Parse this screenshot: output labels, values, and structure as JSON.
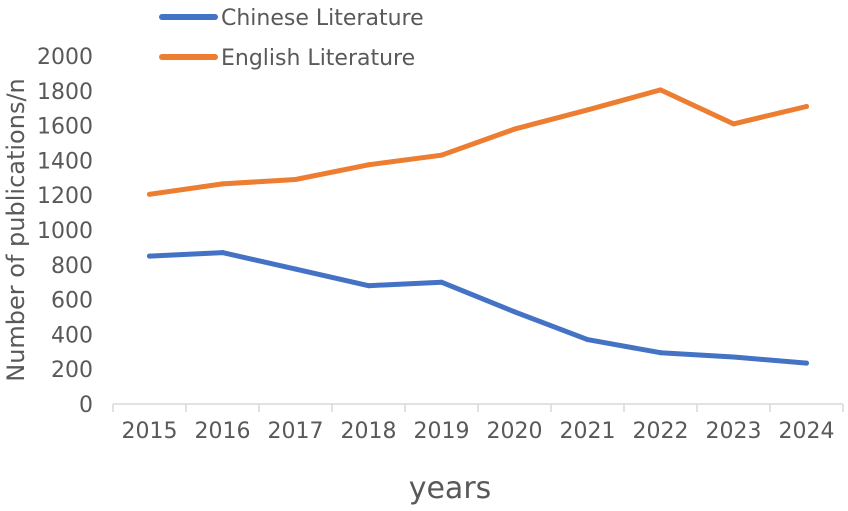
{
  "chart_data": {
    "type": "line",
    "title": "",
    "xlabel": "years",
    "ylabel": "Number of publications/n",
    "categories": [
      "2015",
      "2016",
      "2017",
      "2018",
      "2019",
      "2020",
      "2021",
      "2022",
      "2023",
      "2024"
    ],
    "ylim": [
      0,
      2000
    ],
    "yticks": [
      "0",
      "200",
      "400",
      "600",
      "800",
      "1000",
      "1200",
      "1400",
      "1600",
      "1800",
      "2000"
    ],
    "grid": false,
    "legend_position": "top-left",
    "series": [
      {
        "name": "Chinese Literature",
        "color": "#4472C4",
        "values": [
          850,
          870,
          775,
          680,
          700,
          530,
          370,
          295,
          270,
          235
        ]
      },
      {
        "name": "English Literature",
        "color": "#ED7D31",
        "values": [
          1205,
          1265,
          1290,
          1375,
          1430,
          1580,
          1690,
          1805,
          1610,
          1710
        ]
      }
    ]
  }
}
